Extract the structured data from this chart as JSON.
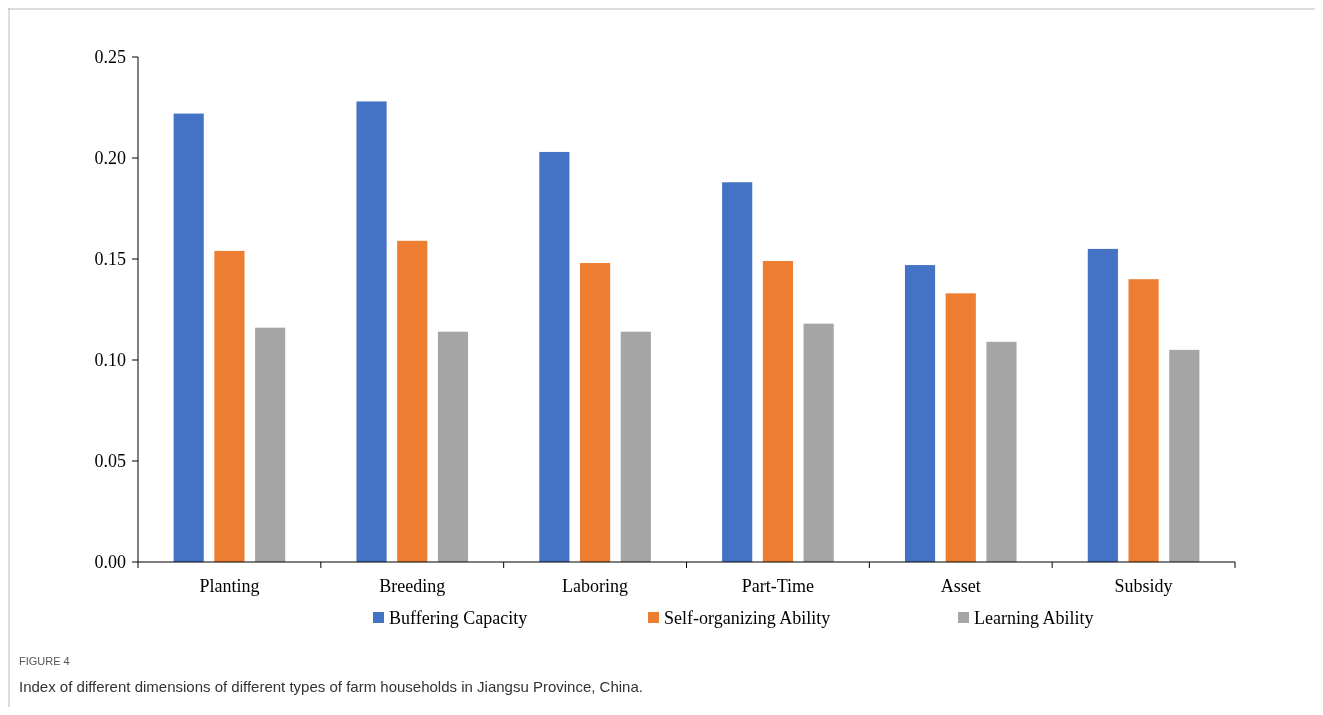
{
  "chart_data": {
    "type": "bar",
    "categories": [
      "Planting",
      "Breeding",
      "Laboring",
      "Part-Time",
      "Asset",
      "Subsidy"
    ],
    "series": [
      {
        "name": "Buffering Capacity",
        "color": "#4472c4",
        "values": [
          0.222,
          0.228,
          0.203,
          0.188,
          0.147,
          0.155
        ]
      },
      {
        "name": "Self-organizing Ability",
        "color": "#ed7d31",
        "values": [
          0.154,
          0.159,
          0.148,
          0.149,
          0.133,
          0.14
        ]
      },
      {
        "name": "Learning Ability",
        "color": "#a5a5a5",
        "values": [
          0.116,
          0.114,
          0.114,
          0.118,
          0.109,
          0.105
        ]
      }
    ],
    "ylim": [
      0,
      0.25
    ],
    "yticks": [
      {
        "value": 0,
        "label": "0.00"
      },
      {
        "value": 0.05,
        "label": "0.05"
      },
      {
        "value": 0.1,
        "label": "0.10"
      },
      {
        "value": 0.15,
        "label": "0.15"
      },
      {
        "value": 0.2,
        "label": "0.20"
      },
      {
        "value": 0.25,
        "label": "0.25"
      }
    ],
    "grid": false,
    "legend": "bottom",
    "annotations": [
      "FIGURE 4",
      "Index of different dimensions of different types of farm households in Jiangsu Province, China."
    ]
  }
}
